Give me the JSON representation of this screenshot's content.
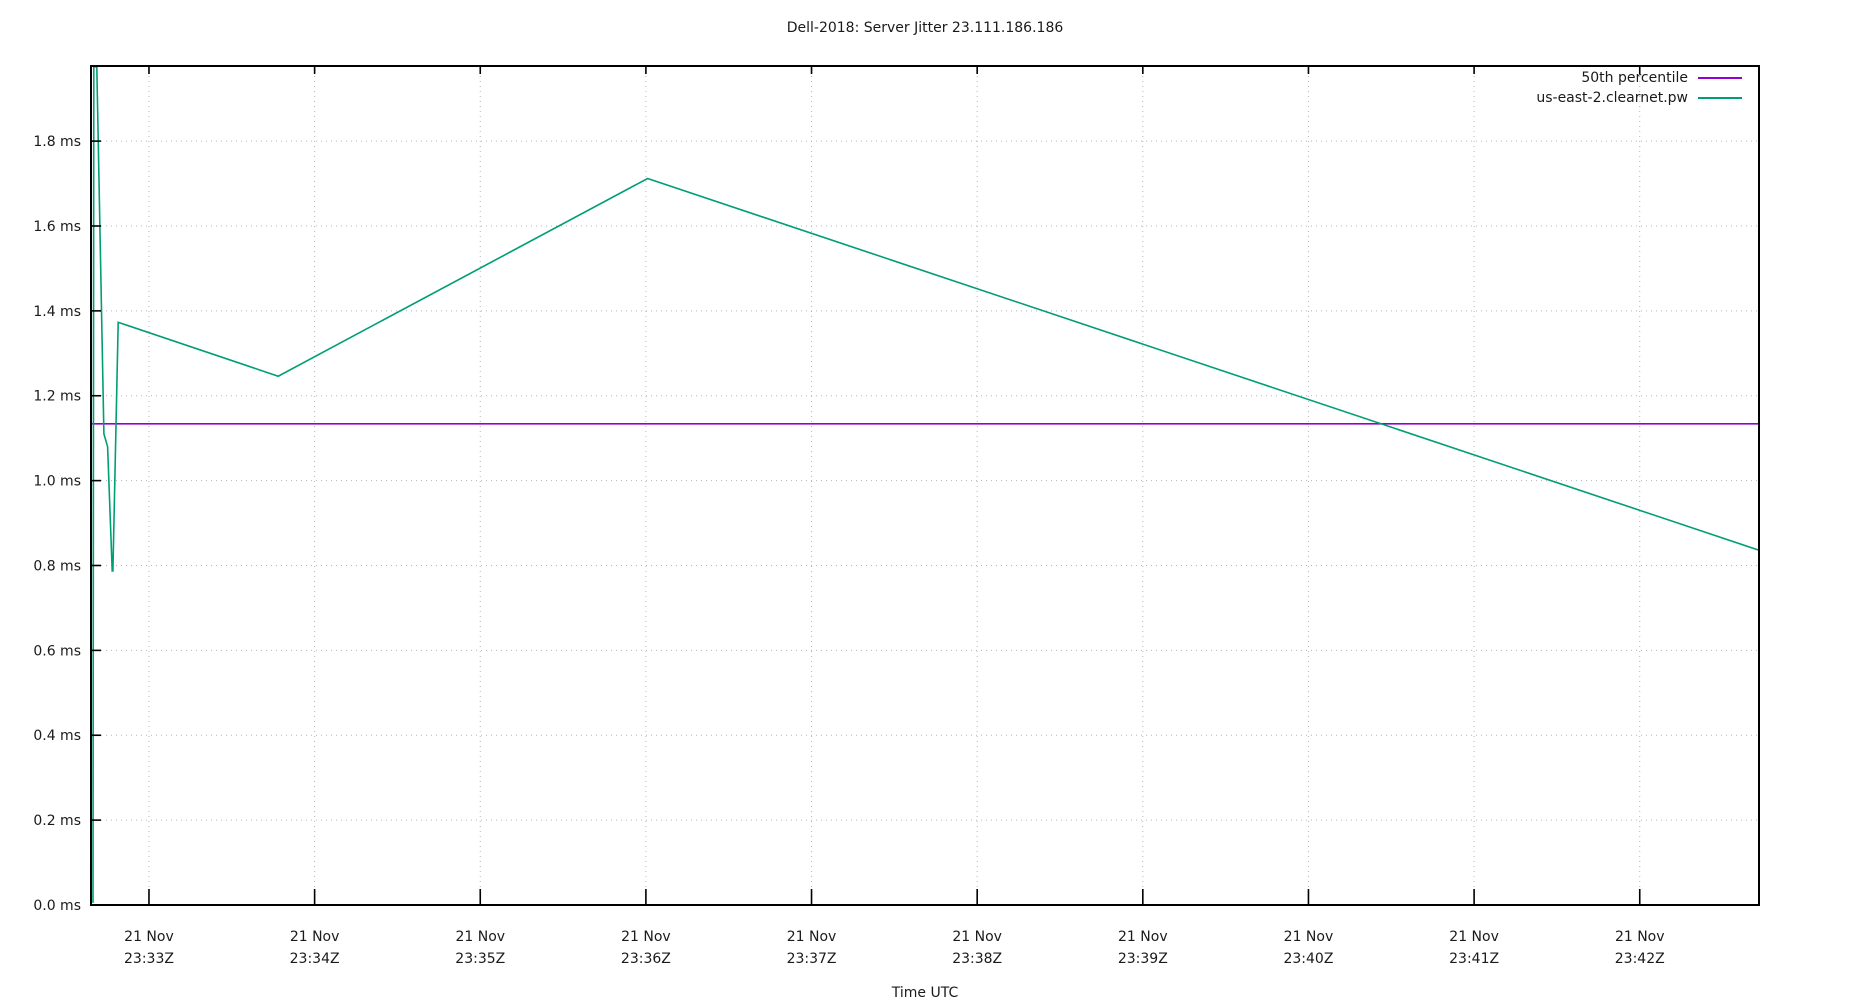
{
  "title": "Dell-2018: Server Jitter 23.111.186.186",
  "chart_data": {
    "type": "line",
    "title": "Dell-2018: Server Jitter 23.111.186.186",
    "xlabel": "Time UTC",
    "ylabel": "",
    "grid": true,
    "grid_color": "#b5b5b5",
    "border_color": "#000000",
    "text_color": "#1a1a1a",
    "background_color": "#ffffff",
    "legend_position": "top-right",
    "x_axis": {
      "description": "time UTC, minutes relative to 21 Nov 23:33Z",
      "range_minutes": [
        -0.35,
        9.72
      ],
      "ticks": [
        {
          "t": 0,
          "line1": "21 Nov",
          "line2": "23:33Z"
        },
        {
          "t": 1,
          "line1": "21 Nov",
          "line2": "23:34Z"
        },
        {
          "t": 2,
          "line1": "21 Nov",
          "line2": "23:35Z"
        },
        {
          "t": 3,
          "line1": "21 Nov",
          "line2": "23:36Z"
        },
        {
          "t": 4,
          "line1": "21 Nov",
          "line2": "23:37Z"
        },
        {
          "t": 5,
          "line1": "21 Nov",
          "line2": "23:38Z"
        },
        {
          "t": 6,
          "line1": "21 Nov",
          "line2": "23:39Z"
        },
        {
          "t": 7,
          "line1": "21 Nov",
          "line2": "23:40Z"
        },
        {
          "t": 8,
          "line1": "21 Nov",
          "line2": "23:41Z"
        },
        {
          "t": 9,
          "line1": "21 Nov",
          "line2": "23:42Z"
        }
      ]
    },
    "y_axis": {
      "range_ms": [
        0,
        1.977
      ],
      "ticks": [
        {
          "v": 0.0,
          "label": "0.0 ms"
        },
        {
          "v": 0.2,
          "label": "0.2 ms"
        },
        {
          "v": 0.4,
          "label": "0.4 ms"
        },
        {
          "v": 0.6,
          "label": "0.6 ms"
        },
        {
          "v": 0.8,
          "label": "0.8 ms"
        },
        {
          "v": 1.0,
          "label": "1.0 ms"
        },
        {
          "v": 1.2,
          "label": "1.2 ms"
        },
        {
          "v": 1.4,
          "label": "1.4 ms"
        },
        {
          "v": 1.6,
          "label": "1.6 ms"
        },
        {
          "v": 1.8,
          "label": "1.8 ms"
        }
      ]
    },
    "series": [
      {
        "name": "50th percentile",
        "color": "#9400d3",
        "points_t_ms": [
          [
            -0.35,
            1.134
          ],
          [
            9.72,
            1.134
          ]
        ]
      },
      {
        "name": "us-east-2.clearnet.pw",
        "color": "#009e73",
        "points_t_ms": [
          [
            -0.338,
            0.005
          ],
          [
            -0.333,
            1.975
          ],
          [
            -0.315,
            1.975
          ],
          [
            -0.272,
            1.11
          ],
          [
            -0.25,
            1.08
          ],
          [
            -0.222,
            0.787
          ],
          [
            -0.218,
            0.787
          ],
          [
            -0.186,
            1.373
          ],
          [
            0.78,
            1.246
          ],
          [
            3.01,
            1.712
          ],
          [
            9.72,
            0.836
          ]
        ]
      }
    ]
  }
}
